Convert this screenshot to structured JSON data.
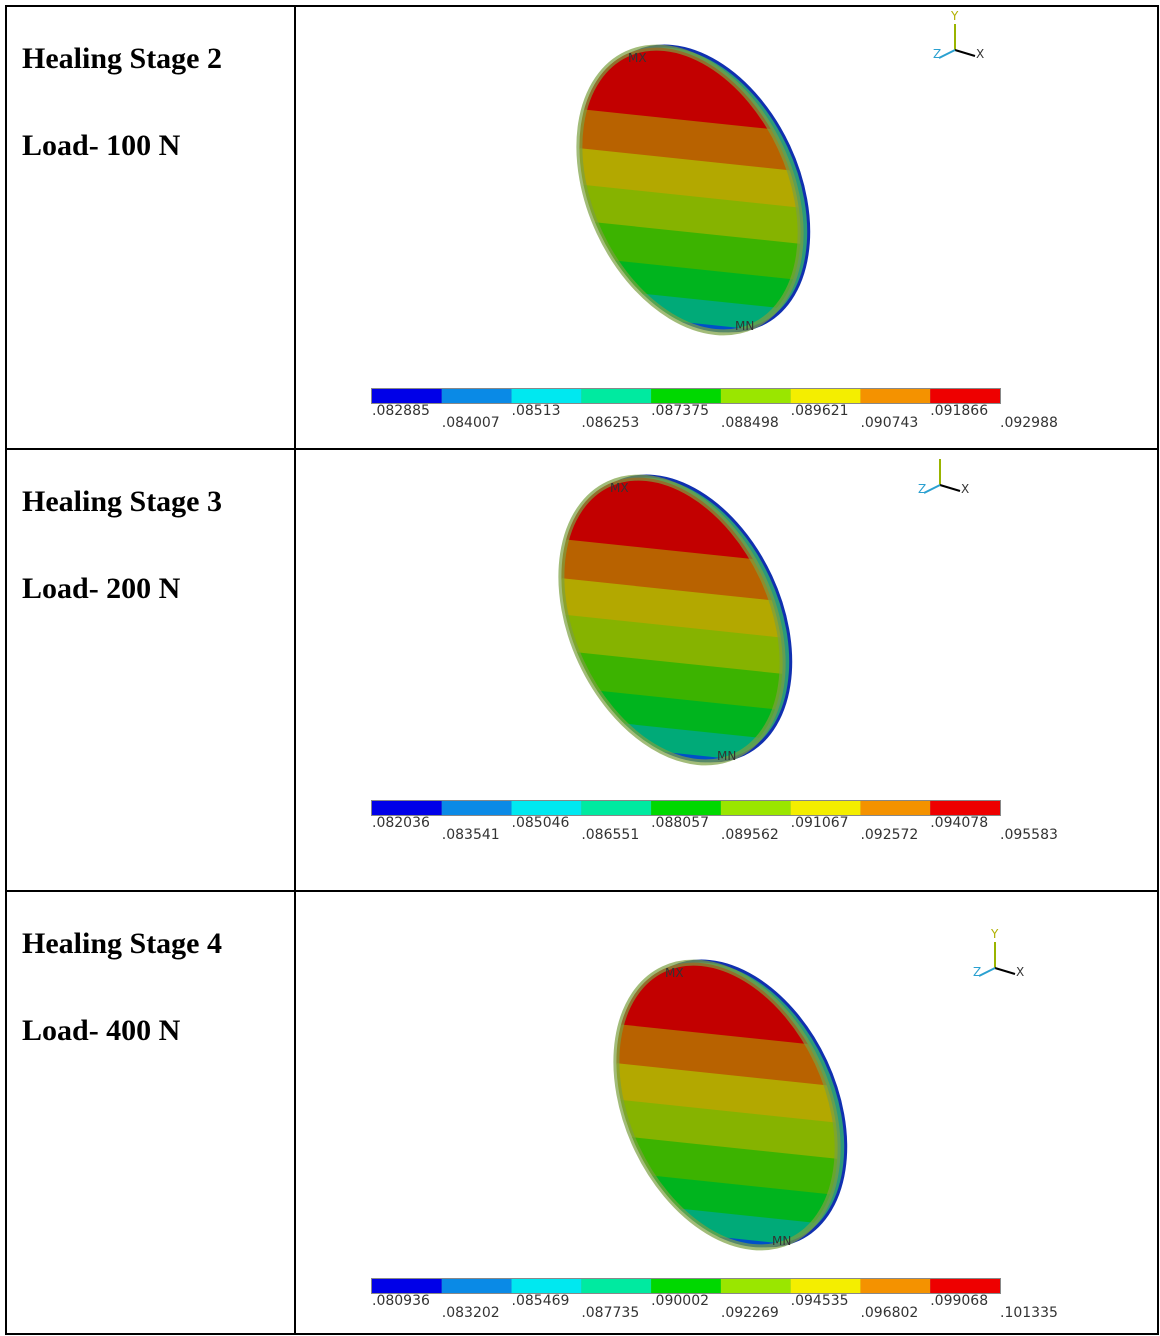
{
  "rows": [
    {
      "stage": "Healing Stage 2",
      "load": "Load- 100 N",
      "max_label": "MX",
      "min_label": "MN",
      "axes": [
        "Y",
        "Z",
        "X"
      ],
      "legend": [
        ".082885",
        ".084007",
        ".08513",
        ".086253",
        ".087375",
        ".088498",
        ".089621",
        ".090743",
        ".091866",
        ".092988"
      ]
    },
    {
      "stage": "Healing Stage 3",
      "load": "Load- 200 N",
      "max_label": "MX",
      "min_label": "MN",
      "axes": [
        "Z",
        "X"
      ],
      "legend": [
        ".082036",
        ".083541",
        ".085046",
        ".086551",
        ".088057",
        ".089562",
        ".091067",
        ".092572",
        ".094078",
        ".095583"
      ]
    },
    {
      "stage": "Healing Stage 4",
      "load": "Load- 400 N",
      "max_label": "MX",
      "min_label": "MN",
      "axes": [
        "Y",
        "Z",
        "X"
      ],
      "legend": [
        ".080936",
        ".083202",
        ".085469",
        ".087735",
        ".090002",
        ".092269",
        ".094535",
        ".096802",
        ".099068",
        ".101335"
      ]
    }
  ]
}
